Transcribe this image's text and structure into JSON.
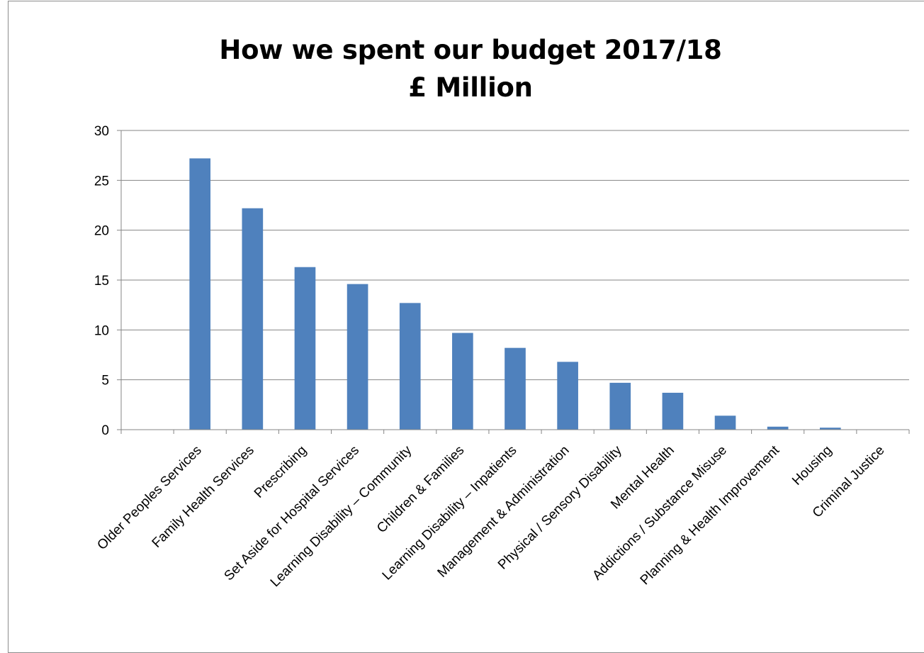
{
  "chart_data": {
    "type": "bar",
    "title": "How we spent our budget 2017/18",
    "subtitle": "£ Million",
    "xlabel": "",
    "ylabel": "",
    "ylim": [
      0,
      30
    ],
    "yticks": [
      0,
      5,
      10,
      15,
      20,
      25,
      30
    ],
    "grid": true,
    "legend": "none",
    "bar_color": "#4f81bd",
    "categories": [
      "",
      "Older Peoples Services",
      "Family Health Services",
      "Prescribing",
      "Set Aside for Hospital Services",
      "Learning Disability – Community",
      "Children & Families",
      "Learning Disability – Inpatients",
      "Management & Administration",
      "Physical / Sensory Disability",
      "Mental Health",
      "Addictions / Substance Misuse",
      "Planning & Health Improvement",
      "Housing",
      "Criminal Justice"
    ],
    "values": [
      0,
      27.2,
      22.2,
      16.3,
      14.6,
      12.7,
      9.7,
      8.2,
      6.8,
      4.7,
      3.7,
      1.4,
      0.3,
      0.2,
      0
    ]
  }
}
